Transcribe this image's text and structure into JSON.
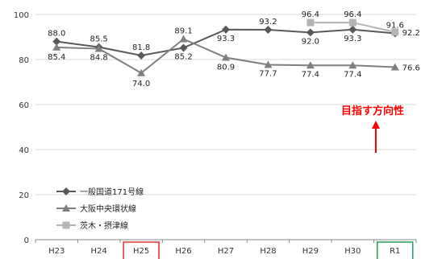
{
  "chart_data": {
    "type": "line",
    "categories": [
      "H23",
      "H24",
      "H25",
      "H26",
      "H27",
      "H28",
      "H29",
      "H30",
      "R1"
    ],
    "ylim": [
      0,
      100
    ],
    "yticks": [
      0,
      20,
      40,
      60,
      80,
      100
    ],
    "grid": true,
    "legend_position": "bottom-left",
    "series": [
      {
        "name": "一般国道171号線",
        "color": "#595959",
        "marker": "diamond",
        "values": [
          88.0,
          85.5,
          81.8,
          85.2,
          93.3,
          93.2,
          92.0,
          93.3,
          91.6
        ],
        "labels": [
          "88.0",
          "85.5",
          "81.8",
          "85.2",
          "93.3",
          "93.2",
          "92.0",
          "93.3",
          "91.6"
        ]
      },
      {
        "name": "大阪中央環状線",
        "color": "#7f7f7f",
        "marker": "triangle",
        "values": [
          85.4,
          84.8,
          74.0,
          89.1,
          80.9,
          77.7,
          77.4,
          77.4,
          76.6
        ],
        "labels": [
          "85.4",
          "84.8",
          "74.0",
          "89.1",
          "80.9",
          "77.7",
          "77.4",
          "77.4",
          "76.6"
        ]
      },
      {
        "name": "茨木・摂津線",
        "color": "#b4b4b4",
        "marker": "square",
        "values": [
          null,
          null,
          null,
          null,
          null,
          null,
          96.4,
          96.4,
          92.2
        ],
        "labels": [
          "",
          "",
          "",
          "",
          "",
          "",
          "96.4",
          "96.4",
          "92.2"
        ]
      }
    ],
    "annotation": {
      "text": "目指す方向性",
      "color": "#ff0000"
    },
    "highlighted_categories": [
      {
        "category": "H25",
        "color": "#e03030"
      },
      {
        "category": "R1",
        "color": "#22a05a"
      }
    ]
  }
}
